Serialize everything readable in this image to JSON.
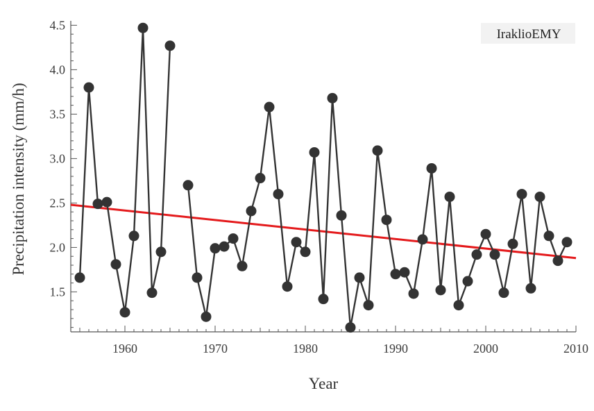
{
  "chart_data": {
    "type": "line",
    "title": "",
    "xlabel": "Year",
    "ylabel": "Precipitation intensity (mm/h)",
    "xlim": [
      1954,
      2010
    ],
    "ylim": [
      1.05,
      4.55
    ],
    "xticks": [
      1960,
      1970,
      1980,
      1990,
      2000,
      2010
    ],
    "xtick_labels": [
      "1960",
      "1970",
      "1980",
      "1990",
      "2000",
      "2010"
    ],
    "yticks": [
      1.5,
      2.0,
      2.5,
      3.0,
      3.5,
      4.0,
      4.5
    ],
    "ytick_labels": [
      "1.5",
      "2.0",
      "2.5",
      "3.0",
      "3.5",
      "4.0",
      "4.5"
    ],
    "legend": {
      "text": "IraklioEMY",
      "position": "top-right"
    },
    "grid": false,
    "series": [
      {
        "name": "IraklioEMY",
        "color": "#333333",
        "segments": [
          {
            "x": [
              1955,
              1956,
              1957,
              1958,
              1959,
              1960,
              1961,
              1962,
              1963,
              1964,
              1965
            ],
            "y": [
              1.66,
              3.8,
              2.49,
              2.51,
              1.81,
              1.27,
              2.13,
              4.47,
              1.49,
              1.95,
              4.27
            ]
          },
          {
            "x": [
              1967,
              1968,
              1969,
              1970,
              1971,
              1972,
              1973,
              1974,
              1975,
              1976,
              1977,
              1978,
              1979,
              1980,
              1981,
              1982,
              1983,
              1984,
              1985,
              1986,
              1987,
              1988,
              1989,
              1990,
              1991,
              1992,
              1993,
              1994,
              1995,
              1996,
              1997,
              1998,
              1999,
              2000,
              2001,
              2002,
              2003,
              2004,
              2005,
              2006,
              2007,
              2008,
              2009
            ],
            "y": [
              2.7,
              1.66,
              1.22,
              1.99,
              2.01,
              2.1,
              1.79,
              2.41,
              2.78,
              3.58,
              2.6,
              1.56,
              2.06,
              1.95,
              3.07,
              1.42,
              3.68,
              2.36,
              1.1,
              1.66,
              1.35,
              3.09,
              2.31,
              1.7,
              1.72,
              1.48,
              2.09,
              2.89,
              1.52,
              2.57,
              1.35,
              1.62,
              1.92,
              2.15,
              1.92,
              1.49,
              2.04,
              2.6,
              1.54,
              2.57,
              2.13,
              1.85,
              2.06
            ]
          }
        ]
      }
    ],
    "trend": {
      "color": "#e41a1c",
      "x": [
        1954,
        2010
      ],
      "y": [
        2.48,
        1.88
      ]
    }
  }
}
